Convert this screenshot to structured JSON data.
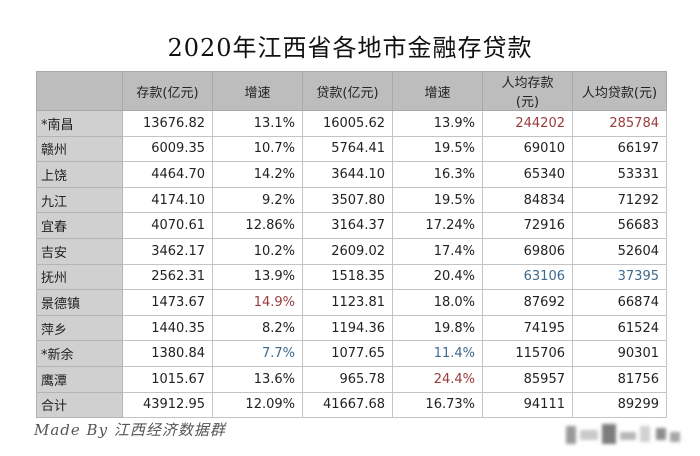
{
  "title": "2020年江西省各地市金融存贷款",
  "headers": [
    "",
    "存款(亿元)",
    "增速",
    "贷款(亿元)",
    "增速",
    "人均存款(元)",
    "人均贷款(元)"
  ],
  "rows": [
    {
      "city": "*南昌",
      "deposit": "13676.82",
      "deposit_growth": "13.1%",
      "loan": "16005.62",
      "loan_growth": "13.9%",
      "per_deposit": "244202",
      "per_loan": "285784"
    },
    {
      "city": "赣州",
      "deposit": "6009.35",
      "deposit_growth": "10.7%",
      "loan": "5764.41",
      "loan_growth": "19.5%",
      "per_deposit": "69010",
      "per_loan": "66197"
    },
    {
      "city": "上饶",
      "deposit": "4464.70",
      "deposit_growth": "14.2%",
      "loan": "3644.10",
      "loan_growth": "16.3%",
      "per_deposit": "65340",
      "per_loan": "53331"
    },
    {
      "city": "九江",
      "deposit": "4174.10",
      "deposit_growth": "9.2%",
      "loan": "3507.80",
      "loan_growth": "19.5%",
      "per_deposit": "84834",
      "per_loan": "71292"
    },
    {
      "city": "宜春",
      "deposit": "4070.61",
      "deposit_growth": "12.86%",
      "loan": "3164.37",
      "loan_growth": "17.24%",
      "per_deposit": "72916",
      "per_loan": "56683"
    },
    {
      "city": "吉安",
      "deposit": "3462.17",
      "deposit_growth": "10.2%",
      "loan": "2609.02",
      "loan_growth": "17.4%",
      "per_deposit": "69806",
      "per_loan": "52604"
    },
    {
      "city": "抚州",
      "deposit": "2562.31",
      "deposit_growth": "13.9%",
      "loan": "1518.35",
      "loan_growth": "20.4%",
      "per_deposit": "63106",
      "per_loan": "37395"
    },
    {
      "city": "景德镇",
      "deposit": "1473.67",
      "deposit_growth": "14.9%",
      "loan": "1123.81",
      "loan_growth": "18.0%",
      "per_deposit": "87692",
      "per_loan": "66874"
    },
    {
      "city": "萍乡",
      "deposit": "1440.35",
      "deposit_growth": "8.2%",
      "loan": "1194.36",
      "loan_growth": "19.8%",
      "per_deposit": "74195",
      "per_loan": "61524"
    },
    {
      "city": "*新余",
      "deposit": "1380.84",
      "deposit_growth": "7.7%",
      "loan": "1077.65",
      "loan_growth": "11.4%",
      "per_deposit": "115706",
      "per_loan": "90301"
    },
    {
      "city": "鹰潭",
      "deposit": "1015.67",
      "deposit_growth": "13.6%",
      "loan": "965.78",
      "loan_growth": "24.4%",
      "per_deposit": "85957",
      "per_loan": "81756"
    },
    {
      "city": "合计",
      "deposit": "43912.95",
      "deposit_growth": "12.09%",
      "loan": "41667.68",
      "loan_growth": "16.73%",
      "per_deposit": "94111",
      "per_loan": "89299"
    }
  ],
  "highlights": {
    "max_color": "#9a3b3b",
    "min_color": "#3d6a8e"
  },
  "footer": "Made  By  江西经济数据群"
}
